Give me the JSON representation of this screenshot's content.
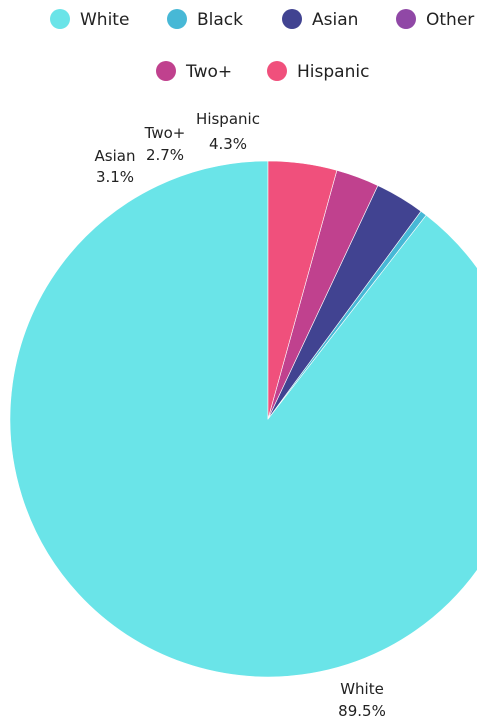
{
  "chart_data": {
    "type": "pie",
    "categories": [
      "White",
      "Black",
      "Asian",
      "Other",
      "Two+",
      "Hispanic"
    ],
    "values": [
      89.5,
      0.4,
      3.1,
      0.0,
      2.7,
      4.3
    ],
    "value_labels": [
      "89.5%",
      "",
      "3.1%",
      "",
      "2.7%",
      "4.3%"
    ],
    "colors": [
      "#6ae4e8",
      "#47b8d6",
      "#414391",
      "#9048a6",
      "#c0418e",
      "#f0507c"
    ],
    "start_angle_deg": 0,
    "direction": "counterclockwise",
    "legend": {
      "position": "top",
      "items": [
        {
          "name": "White",
          "color": "#6ae4e8"
        },
        {
          "name": "Black",
          "color": "#47b8d6"
        },
        {
          "name": "Asian",
          "color": "#414391"
        },
        {
          "name": "Other",
          "color": "#9048a6"
        },
        {
          "name": "Two+",
          "color": "#c0418e"
        },
        {
          "name": "Hispanic",
          "color": "#f0507c"
        }
      ]
    }
  }
}
